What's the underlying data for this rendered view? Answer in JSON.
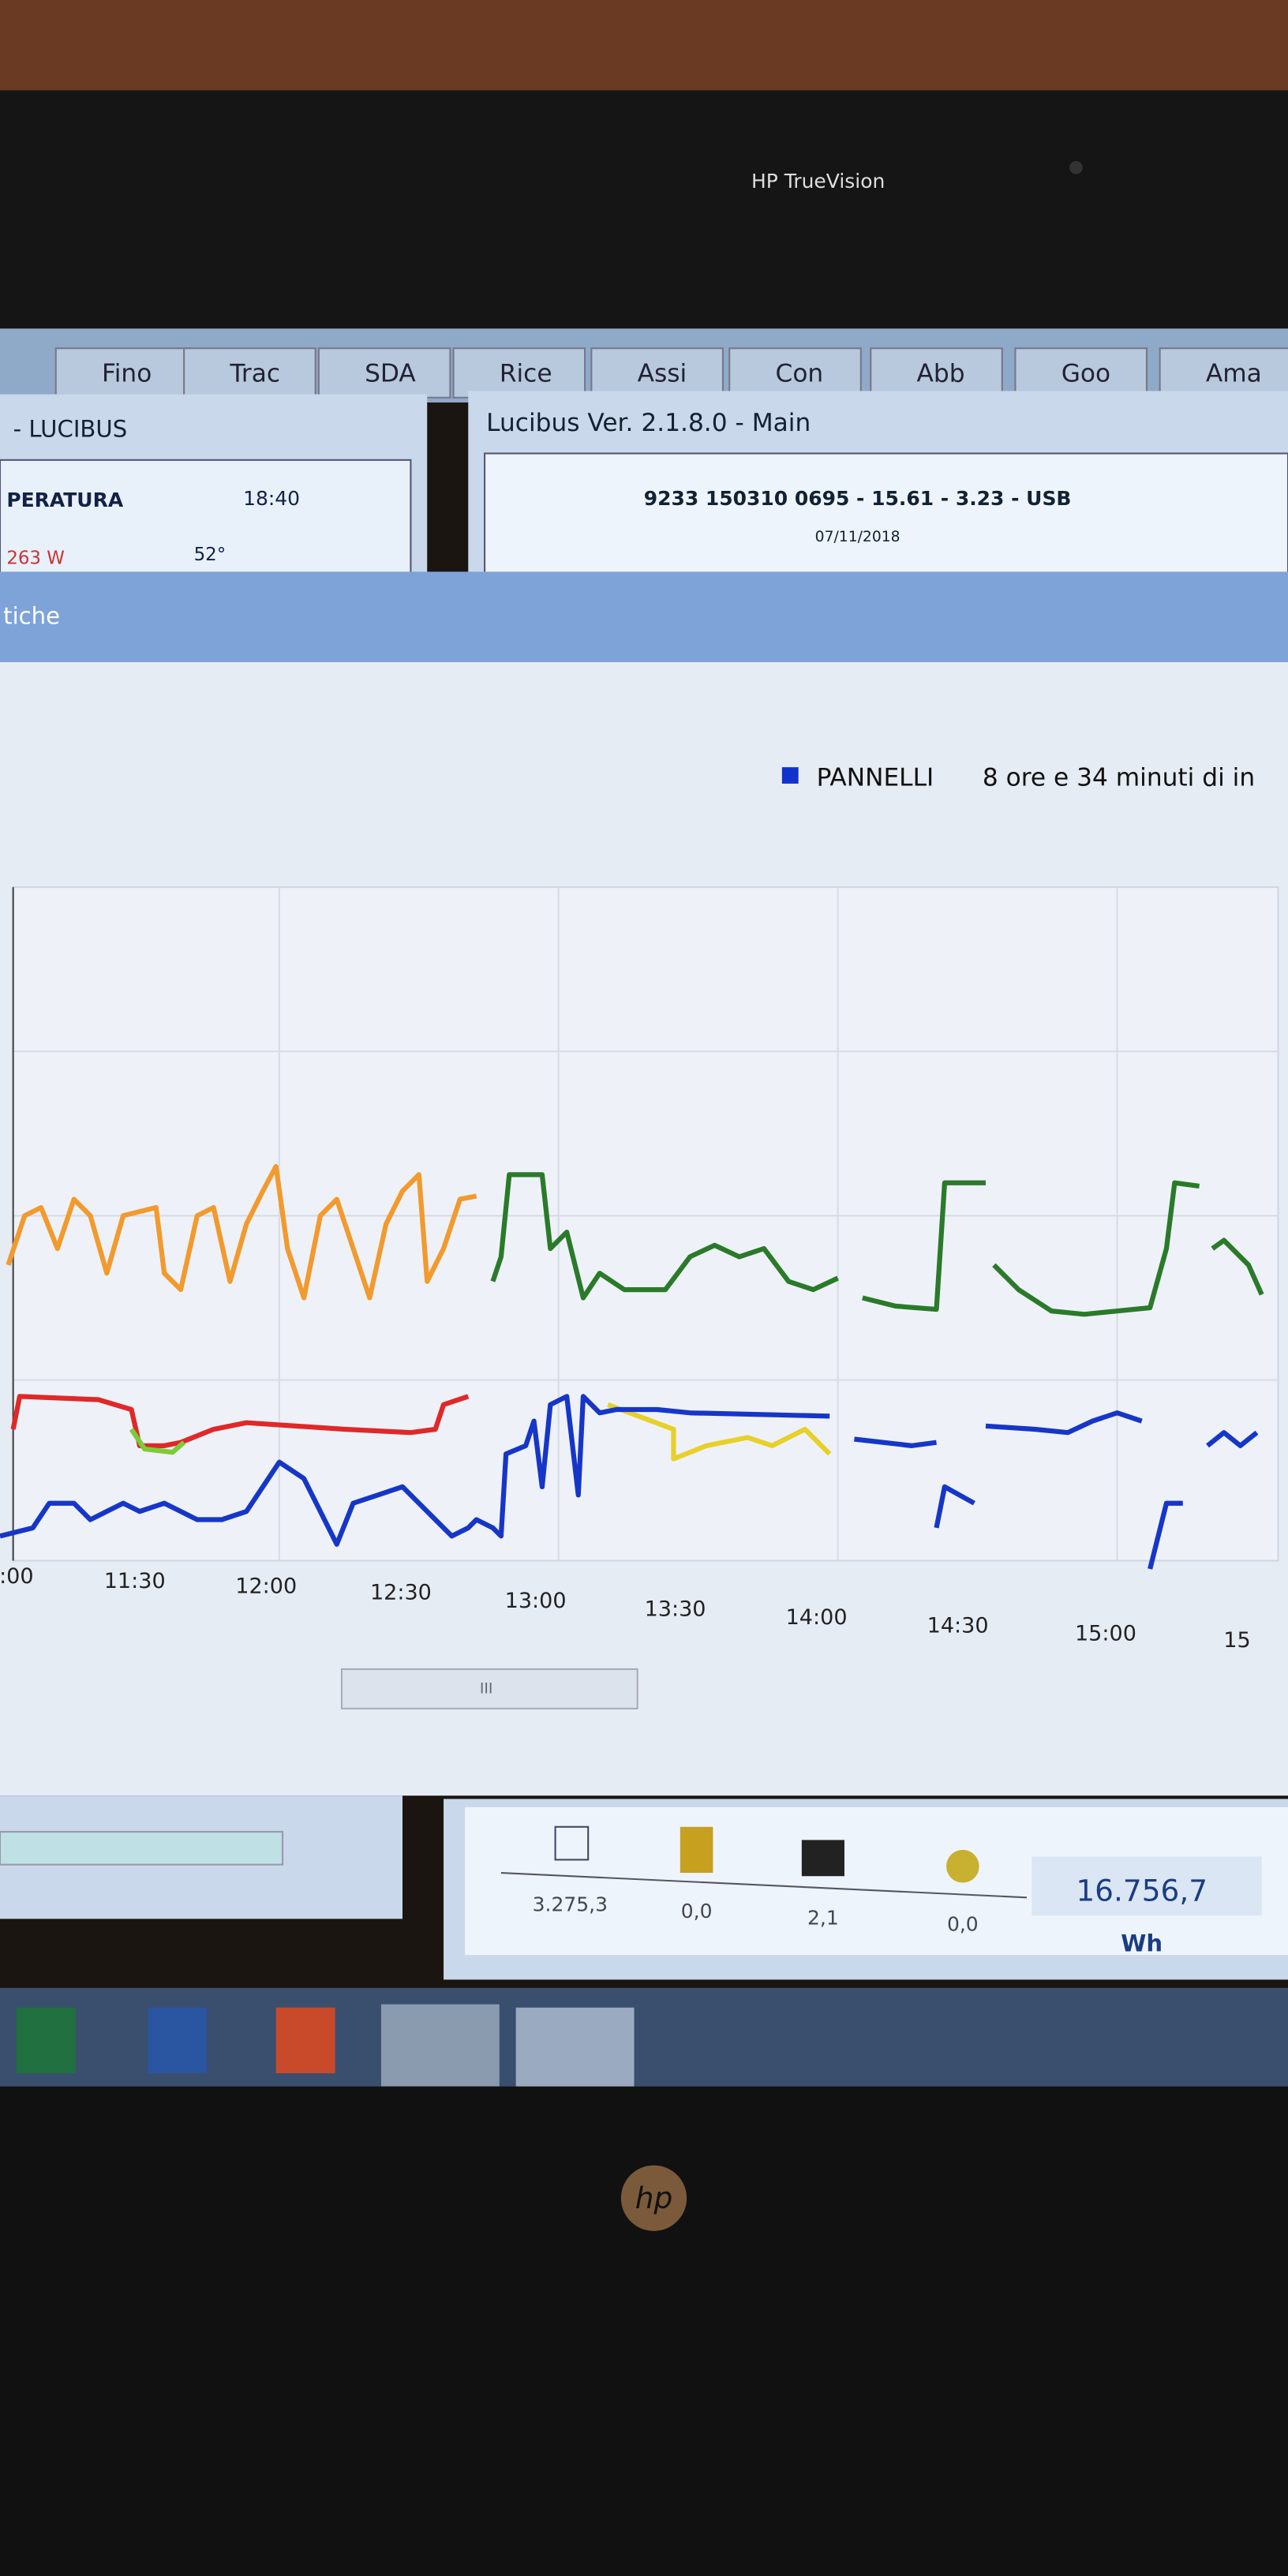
{
  "webcam_label": "HP TrueVision",
  "browser_tabs": [
    "Fino",
    "Trac",
    "SDA",
    "Rice",
    "Assi",
    "Con",
    "Abb",
    "Goo",
    "Ama"
  ],
  "left_window": {
    "title": "- LUCIBUS",
    "label": "PERATURA",
    "time": "18:40",
    "power": "263 W",
    "temp": "52°"
  },
  "main_window": {
    "title": "Lucibus Ver. 2.1.8.0 - Main",
    "status": "9233 150310 0695  -  15.61 - 3.23  -  USB",
    "date": "07/11/2018"
  },
  "tab_label": "tiche",
  "chart": {
    "legend": "PANNELLI",
    "legend_note": "8 ore e 34 minuti di in",
    "x_labels": [
      ":00",
      "11:30",
      "12:00",
      "12:30",
      "13:00",
      "13:30",
      "14:00",
      "14:30",
      "15:00",
      "15"
    ]
  },
  "scrollbar_label": "III",
  "totals": {
    "values": [
      "3.275,3",
      "0,0",
      "2,1",
      "0,0"
    ],
    "total": "16.756,7",
    "unit": "Wh"
  },
  "hp_logo": "hp"
}
